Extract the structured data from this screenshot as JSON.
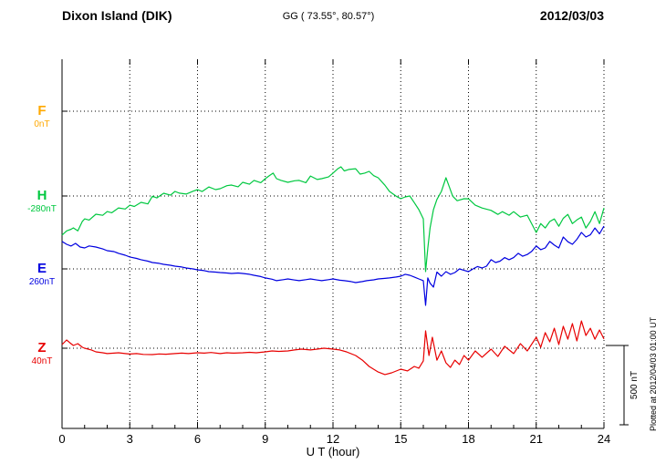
{
  "header": {
    "station": "Dixon Island (DIK)",
    "coordinates": "GG ( 73.55°,  80.57°)",
    "date": "2012/03/03"
  },
  "footnote": "Plotted at 2012/04/03 01:00 UT",
  "chart_data": {
    "type": "line",
    "title": "Dixon Island (DIK)",
    "subtitle": "GG ( 73.55°,  80.57°)",
    "date": "2012/03/03",
    "xlabel": "U T (hour)",
    "x_range": [
      0,
      24
    ],
    "x_ticks": [
      0,
      3,
      6,
      9,
      12,
      15,
      18,
      21,
      24
    ],
    "y_unit": "nT",
    "grid": "dotted",
    "scale_bar": {
      "label": "500 nT",
      "nT": 500
    },
    "components": [
      {
        "name": "F",
        "label": "F",
        "value_label": "0nT",
        "baseline_nT": 0,
        "color": "#ffa800",
        "points": []
      },
      {
        "name": "H",
        "label": "H",
        "value_label": "-280nT",
        "baseline_nT": -280,
        "color": "#00c840",
        "points": [
          [
            0,
            -527
          ],
          [
            0.2,
            -500
          ],
          [
            0.4,
            -490
          ],
          [
            0.5,
            -481
          ],
          [
            0.7,
            -500
          ],
          [
            0.9,
            -440
          ],
          [
            1,
            -424
          ],
          [
            1.2,
            -432
          ],
          [
            1.5,
            -395
          ],
          [
            1.8,
            -402
          ],
          [
            2,
            -378
          ],
          [
            2.2,
            -386
          ],
          [
            2.5,
            -355
          ],
          [
            2.8,
            -362
          ],
          [
            3,
            -338
          ],
          [
            3.2,
            -346
          ],
          [
            3.5,
            -320
          ],
          [
            3.8,
            -330
          ],
          [
            4,
            -282
          ],
          [
            4.2,
            -292
          ],
          [
            4.5,
            -263
          ],
          [
            4.8,
            -275
          ],
          [
            5,
            -251
          ],
          [
            5.2,
            -262
          ],
          [
            5.5,
            -268
          ],
          [
            5.8,
            -250
          ],
          [
            6,
            -240
          ],
          [
            6.2,
            -252
          ],
          [
            6.5,
            -223
          ],
          [
            6.8,
            -240
          ],
          [
            7,
            -234
          ],
          [
            7.3,
            -215
          ],
          [
            7.5,
            -211
          ],
          [
            7.8,
            -222
          ],
          [
            8,
            -194
          ],
          [
            8.3,
            -206
          ],
          [
            8.5,
            -182
          ],
          [
            8.8,
            -196
          ],
          [
            9,
            -171
          ],
          [
            9.2,
            -150
          ],
          [
            9.35,
            -136
          ],
          [
            9.5,
            -171
          ],
          [
            9.7,
            -182
          ],
          [
            10,
            -194
          ],
          [
            10.3,
            -184
          ],
          [
            10.5,
            -182
          ],
          [
            10.8,
            -196
          ],
          [
            11,
            -154
          ],
          [
            11.3,
            -176
          ],
          [
            11.5,
            -171
          ],
          [
            11.8,
            -160
          ],
          [
            12,
            -136
          ],
          [
            12.2,
            -110
          ],
          [
            12.35,
            -96
          ],
          [
            12.5,
            -122
          ],
          [
            12.7,
            -113
          ],
          [
            13,
            -108
          ],
          [
            13.2,
            -142
          ],
          [
            13.4,
            -136
          ],
          [
            13.6,
            -125
          ],
          [
            13.8,
            -152
          ],
          [
            14,
            -165
          ],
          [
            14.3,
            -212
          ],
          [
            14.5,
            -251
          ],
          [
            14.8,
            -282
          ],
          [
            15,
            -297
          ],
          [
            15.2,
            -286
          ],
          [
            15.4,
            -280
          ],
          [
            15.6,
            -322
          ],
          [
            15.8,
            -366
          ],
          [
            16,
            -424
          ],
          [
            16.1,
            -757
          ],
          [
            16.2,
            -610
          ],
          [
            16.3,
            -481
          ],
          [
            16.45,
            -366
          ],
          [
            16.6,
            -302
          ],
          [
            16.8,
            -251
          ],
          [
            17,
            -165
          ],
          [
            17.1,
            -202
          ],
          [
            17.3,
            -281
          ],
          [
            17.5,
            -310
          ],
          [
            17.8,
            -297
          ],
          [
            18,
            -298
          ],
          [
            18.3,
            -338
          ],
          [
            18.6,
            -356
          ],
          [
            19,
            -371
          ],
          [
            19.3,
            -396
          ],
          [
            19.5,
            -379
          ],
          [
            19.8,
            -401
          ],
          [
            20,
            -379
          ],
          [
            20.3,
            -413
          ],
          [
            20.6,
            -401
          ],
          [
            21,
            -510
          ],
          [
            21.2,
            -454
          ],
          [
            21.4,
            -482
          ],
          [
            21.6,
            -441
          ],
          [
            21.8,
            -425
          ],
          [
            22,
            -471
          ],
          [
            22.2,
            -421
          ],
          [
            22.4,
            -396
          ],
          [
            22.6,
            -454
          ],
          [
            22.8,
            -431
          ],
          [
            23,
            -413
          ],
          [
            23.2,
            -482
          ],
          [
            23.4,
            -441
          ],
          [
            23.6,
            -379
          ],
          [
            23.8,
            -454
          ],
          [
            24,
            -356
          ]
        ]
      },
      {
        "name": "E",
        "label": "E",
        "value_label": "260nT",
        "baseline_nT": 260,
        "color": "#0000e0",
        "points": [
          [
            0,
            433
          ],
          [
            0.2,
            415
          ],
          [
            0.4,
            404
          ],
          [
            0.6,
            421
          ],
          [
            0.8,
            398
          ],
          [
            1,
            392
          ],
          [
            1.2,
            405
          ],
          [
            1.5,
            398
          ],
          [
            1.8,
            386
          ],
          [
            2,
            375
          ],
          [
            2.3,
            369
          ],
          [
            2.5,
            358
          ],
          [
            2.8,
            346
          ],
          [
            3,
            335
          ],
          [
            3.3,
            326
          ],
          [
            3.5,
            318
          ],
          [
            3.8,
            309
          ],
          [
            4,
            300
          ],
          [
            4.3,
            295
          ],
          [
            4.5,
            289
          ],
          [
            4.8,
            283
          ],
          [
            5,
            277
          ],
          [
            5.3,
            272
          ],
          [
            5.5,
            266
          ],
          [
            5.8,
            260
          ],
          [
            6,
            254
          ],
          [
            6.3,
            249
          ],
          [
            6.5,
            243
          ],
          [
            6.8,
            240
          ],
          [
            7,
            237
          ],
          [
            7.3,
            234
          ],
          [
            7.5,
            231
          ],
          [
            7.8,
            234
          ],
          [
            8,
            231
          ],
          [
            8.3,
            226
          ],
          [
            8.5,
            220
          ],
          [
            8.8,
            212
          ],
          [
            9,
            203
          ],
          [
            9.3,
            195
          ],
          [
            9.5,
            186
          ],
          [
            9.8,
            192
          ],
          [
            10,
            197
          ],
          [
            10.3,
            190
          ],
          [
            10.5,
            186
          ],
          [
            10.8,
            192
          ],
          [
            11,
            197
          ],
          [
            11.3,
            190
          ],
          [
            11.5,
            186
          ],
          [
            11.8,
            192
          ],
          [
            12,
            197
          ],
          [
            12.3,
            189
          ],
          [
            12.5,
            186
          ],
          [
            12.8,
            180
          ],
          [
            13,
            174
          ],
          [
            13.3,
            180
          ],
          [
            13.5,
            186
          ],
          [
            13.8,
            191
          ],
          [
            14,
            197
          ],
          [
            14.3,
            200
          ],
          [
            14.5,
            203
          ],
          [
            14.8,
            209
          ],
          [
            15,
            214
          ],
          [
            15.2,
            226
          ],
          [
            15.4,
            220
          ],
          [
            15.6,
            209
          ],
          [
            15.8,
            197
          ],
          [
            16,
            186
          ],
          [
            16.1,
            30
          ],
          [
            16.2,
            203
          ],
          [
            16.3,
            170
          ],
          [
            16.45,
            145
          ],
          [
            16.6,
            240
          ],
          [
            16.8,
            214
          ],
          [
            17,
            243
          ],
          [
            17.2,
            226
          ],
          [
            17.4,
            237
          ],
          [
            17.6,
            260
          ],
          [
            17.8,
            251
          ],
          [
            18,
            243
          ],
          [
            18.2,
            260
          ],
          [
            18.4,
            275
          ],
          [
            18.6,
            266
          ],
          [
            18.8,
            277
          ],
          [
            19,
            318
          ],
          [
            19.2,
            300
          ],
          [
            19.4,
            309
          ],
          [
            19.6,
            331
          ],
          [
            19.8,
            318
          ],
          [
            20,
            331
          ],
          [
            20.2,
            358
          ],
          [
            20.4,
            340
          ],
          [
            20.6,
            351
          ],
          [
            20.8,
            371
          ],
          [
            21,
            404
          ],
          [
            21.2,
            381
          ],
          [
            21.4,
            392
          ],
          [
            21.6,
            433
          ],
          [
            21.8,
            410
          ],
          [
            22,
            392
          ],
          [
            22.2,
            461
          ],
          [
            22.4,
            431
          ],
          [
            22.6,
            415
          ],
          [
            22.8,
            446
          ],
          [
            23,
            490
          ],
          [
            23.2,
            461
          ],
          [
            23.4,
            475
          ],
          [
            23.6,
            518
          ],
          [
            23.8,
            481
          ],
          [
            24,
            530
          ]
        ]
      },
      {
        "name": "Z",
        "label": "Z",
        "value_label": "40nT",
        "baseline_nT": 40,
        "color": "#e80000",
        "points": [
          [
            0,
            63
          ],
          [
            0.2,
            92
          ],
          [
            0.35,
            74
          ],
          [
            0.5,
            57
          ],
          [
            0.7,
            69
          ],
          [
            0.9,
            46
          ],
          [
            1,
            40
          ],
          [
            1.3,
            29
          ],
          [
            1.5,
            17
          ],
          [
            1.8,
            11
          ],
          [
            2,
            6
          ],
          [
            2.3,
            9
          ],
          [
            2.5,
            11
          ],
          [
            2.8,
            6
          ],
          [
            3,
            3
          ],
          [
            3.3,
            6
          ],
          [
            3.6,
            1
          ],
          [
            4,
            0
          ],
          [
            4.3,
            4
          ],
          [
            4.6,
            2
          ],
          [
            5,
            6
          ],
          [
            5.3,
            9
          ],
          [
            5.6,
            6
          ],
          [
            6,
            11
          ],
          [
            6.3,
            9
          ],
          [
            6.6,
            13
          ],
          [
            7,
            6
          ],
          [
            7.3,
            11
          ],
          [
            7.6,
            9
          ],
          [
            8,
            11
          ],
          [
            8.3,
            14
          ],
          [
            8.6,
            11
          ],
          [
            9,
            17
          ],
          [
            9.3,
            23
          ],
          [
            9.6,
            20
          ],
          [
            10,
            23
          ],
          [
            10.3,
            29
          ],
          [
            10.6,
            34
          ],
          [
            11,
            29
          ],
          [
            11.3,
            34
          ],
          [
            11.6,
            40
          ],
          [
            12,
            34
          ],
          [
            12.3,
            29
          ],
          [
            12.6,
            17
          ],
          [
            13,
            -6
          ],
          [
            13.3,
            -35
          ],
          [
            13.6,
            -75
          ],
          [
            14,
            -110
          ],
          [
            14.3,
            -126
          ],
          [
            14.6,
            -115
          ],
          [
            15,
            -92
          ],
          [
            15.3,
            -103
          ],
          [
            15.6,
            -75
          ],
          [
            15.8,
            -86
          ],
          [
            16,
            -40
          ],
          [
            16.1,
            149
          ],
          [
            16.25,
            -6
          ],
          [
            16.4,
            109
          ],
          [
            16.6,
            -35
          ],
          [
            16.8,
            23
          ],
          [
            17,
            -52
          ],
          [
            17.2,
            -81
          ],
          [
            17.4,
            -35
          ],
          [
            17.6,
            -63
          ],
          [
            17.8,
            -6
          ],
          [
            18,
            -35
          ],
          [
            18.3,
            23
          ],
          [
            18.6,
            -17
          ],
          [
            19,
            34
          ],
          [
            19.3,
            -12
          ],
          [
            19.6,
            52
          ],
          [
            20,
            6
          ],
          [
            20.3,
            69
          ],
          [
            20.6,
            23
          ],
          [
            21,
            109
          ],
          [
            21.2,
            46
          ],
          [
            21.4,
            138
          ],
          [
            21.6,
            80
          ],
          [
            21.8,
            166
          ],
          [
            22,
            63
          ],
          [
            22.2,
            178
          ],
          [
            22.4,
            97
          ],
          [
            22.6,
            195
          ],
          [
            22.8,
            86
          ],
          [
            23,
            212
          ],
          [
            23.2,
            120
          ],
          [
            23.4,
            166
          ],
          [
            23.6,
            97
          ],
          [
            23.8,
            155
          ],
          [
            24,
            98
          ]
        ]
      }
    ]
  }
}
